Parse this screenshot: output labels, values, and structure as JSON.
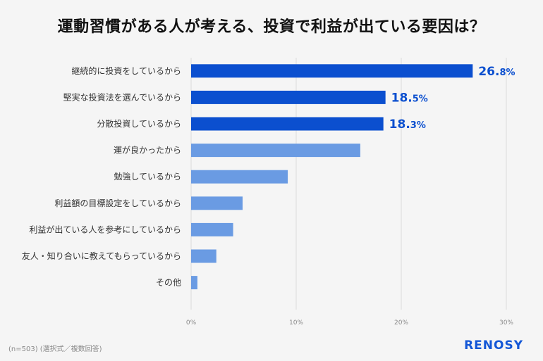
{
  "title": "運動習慣がある人が考える、投資で利益が出ている要因は？",
  "footnote": "(n=503) (選択式／複数回答)",
  "brand": "RENOSY",
  "colors": {
    "highlight": "#0b4fcf",
    "normal": "#6a9be3",
    "label": "#0b4fcf",
    "grid": "#dcdcdc"
  },
  "chart_data": {
    "type": "bar",
    "orientation": "horizontal",
    "categories": [
      "継続的に投資をしているから",
      "堅実な投資法を選んでいるから",
      "分散投資しているから",
      "運が良かったから",
      "勉強しているから",
      "利益額の目標設定をしているから",
      "利益が出ている人を参考にしているから",
      "友人・知り合いに教えてもらっているから",
      "その他"
    ],
    "values": [
      26.8,
      18.5,
      18.3,
      16.1,
      9.2,
      4.9,
      4.0,
      2.4,
      0.6
    ],
    "highlighted": [
      0,
      1,
      2
    ],
    "data_labels": [
      {
        "int": "26.",
        "dec": "8%"
      },
      {
        "int": "18.",
        "dec": "5%"
      },
      {
        "int": "18.",
        "dec": "3%"
      }
    ],
    "xlim": [
      0,
      30
    ],
    "xticks": [
      "0%",
      "10%",
      "20%",
      "30%"
    ],
    "grid": true
  }
}
